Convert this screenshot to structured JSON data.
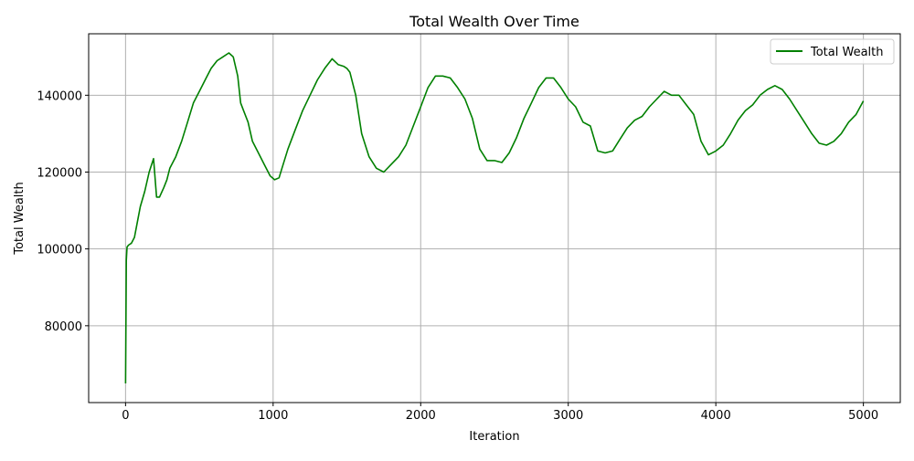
{
  "chart_data": {
    "type": "line",
    "title": "Total Wealth Over Time",
    "xlabel": "Iteration",
    "ylabel": "Total Wealth",
    "xlim": [
      -250,
      5250
    ],
    "ylim": [
      60000,
      156000
    ],
    "xticks": [
      0,
      1000,
      2000,
      3000,
      4000,
      5000
    ],
    "yticks": [
      80000,
      100000,
      120000,
      140000
    ],
    "grid": true,
    "legend_position": "top-right",
    "series": [
      {
        "name": "Total Wealth",
        "color": "#008000",
        "x": [
          0,
          5,
          10,
          20,
          40,
          60,
          80,
          100,
          130,
          160,
          190,
          210,
          220,
          230,
          260,
          280,
          300,
          340,
          380,
          420,
          460,
          500,
          540,
          580,
          620,
          660,
          700,
          730,
          760,
          780,
          800,
          830,
          860,
          900,
          940,
          980,
          1010,
          1040,
          1060,
          1100,
          1150,
          1200,
          1250,
          1300,
          1350,
          1400,
          1440,
          1480,
          1500,
          1520,
          1560,
          1600,
          1650,
          1700,
          1750,
          1800,
          1850,
          1900,
          1950,
          2000,
          2050,
          2100,
          2150,
          2200,
          2250,
          2300,
          2350,
          2400,
          2450,
          2500,
          2550,
          2600,
          2650,
          2700,
          2750,
          2800,
          2850,
          2900,
          2950,
          3000,
          3050,
          3100,
          3150,
          3200,
          3250,
          3300,
          3350,
          3400,
          3450,
          3500,
          3550,
          3600,
          3650,
          3700,
          3750,
          3800,
          3850,
          3900,
          3950,
          4000,
          4050,
          4100,
          4150,
          4200,
          4250,
          4300,
          4350,
          4400,
          4450,
          4500,
          4550,
          4600,
          4650,
          4700,
          4750,
          4800,
          4850,
          4900,
          4950,
          5000
        ],
        "y": [
          65000,
          97000,
          100500,
          101000,
          101500,
          103000,
          107000,
          111000,
          115000,
          120000,
          123500,
          113500,
          113500,
          113500,
          116000,
          118000,
          121000,
          124000,
          128000,
          133000,
          138000,
          141000,
          144000,
          147000,
          149000,
          150000,
          151000,
          150000,
          145000,
          138000,
          136000,
          133000,
          128000,
          125000,
          122000,
          119000,
          118000,
          118500,
          121000,
          126000,
          131000,
          136000,
          140000,
          144000,
          147000,
          149500,
          148000,
          147500,
          147000,
          146000,
          140000,
          130000,
          124000,
          121000,
          120000,
          122000,
          124000,
          127000,
          132000,
          137000,
          142000,
          145000,
          145000,
          144500,
          142000,
          139000,
          134000,
          126000,
          123000,
          123000,
          122500,
          125000,
          129000,
          134000,
          138000,
          142000,
          144500,
          144500,
          142000,
          139000,
          137000,
          133000,
          132000,
          125500,
          125000,
          125500,
          128500,
          131500,
          133500,
          134500,
          137000,
          139000,
          141000,
          140000,
          140000,
          137500,
          135000,
          128000,
          124500,
          125500,
          127000,
          130000,
          133500,
          136000,
          137500,
          140000,
          141500,
          142500,
          141500,
          139000,
          136000,
          133000,
          130000,
          127500,
          127000,
          128000,
          130000,
          133000,
          135000,
          138500
        ]
      }
    ]
  }
}
